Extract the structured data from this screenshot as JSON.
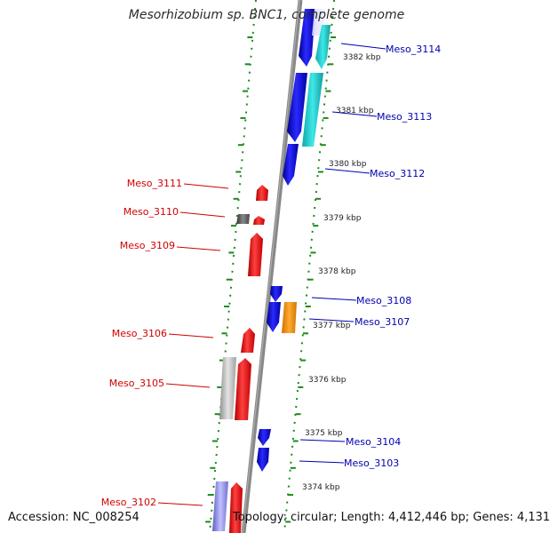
{
  "title": "Mesorhizobium sp. BNC1, complete genome",
  "footer": {
    "accession": "Accession: NC_008254",
    "topology": "Topology: circular; Length: 4,412,446 bp; Genes: 4,131"
  },
  "colors": {
    "backbone": "#888888",
    "tick": "#1a8a1a",
    "forward_label": "#0000b0",
    "reverse_label": "#d00000",
    "red_gene": "#ff2a2a",
    "blue_gene": "#1a1aff",
    "cyan_gene": "#22d0d0",
    "orange_gene": "#ff9a1a",
    "gray_gene": "#c8c8c8",
    "dark_gene": "#555555",
    "lavender_gene": "#9090e0"
  },
  "scale": {
    "kbp_labels": [
      "3382 kbp",
      "3381 kbp",
      "3380 kbp",
      "3379 kbp",
      "3378 kbp",
      "3377 kbp",
      "3376 kbp",
      "3375 kbp",
      "3374 kbp"
    ],
    "kbp_values": [
      3382,
      3381,
      3380,
      3379,
      3378,
      3377,
      3376,
      3375,
      3374
    ]
  },
  "genes": [
    {
      "label": "Meso_3114",
      "strand": "+",
      "color": "blue_gene"
    },
    {
      "label": "Meso_3113",
      "strand": "+",
      "color": "blue_gene"
    },
    {
      "label": "Meso_3112",
      "strand": "+",
      "color": "blue_gene"
    },
    {
      "label": "Meso_3111",
      "strand": "-",
      "color": "red_gene"
    },
    {
      "label": "Meso_3110",
      "strand": "-",
      "color": "red_gene"
    },
    {
      "label": "Meso_3109",
      "strand": "-",
      "color": "red_gene"
    },
    {
      "label": "Meso_3108",
      "strand": "+",
      "color": "blue_gene"
    },
    {
      "label": "Meso_3107",
      "strand": "+",
      "color": "blue_gene"
    },
    {
      "label": "Meso_3106",
      "strand": "-",
      "color": "red_gene"
    },
    {
      "label": "Meso_3105",
      "strand": "-",
      "color": "red_gene"
    },
    {
      "label": "Meso_3104",
      "strand": "+",
      "color": "blue_gene"
    },
    {
      "label": "Meso_3103",
      "strand": "+",
      "color": "blue_gene"
    },
    {
      "label": "Meso_3102",
      "strand": "-",
      "color": "red_gene"
    }
  ]
}
